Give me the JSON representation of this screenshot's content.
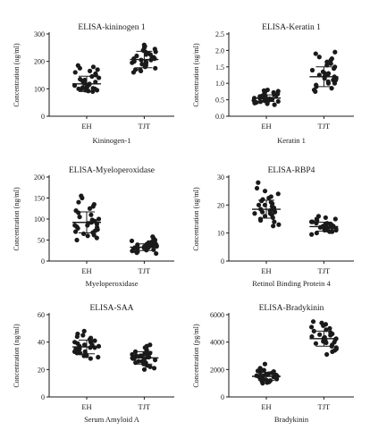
{
  "chart_data": [
    {
      "type": "scatter",
      "title": "ELISA-kininogen 1",
      "xlabel": "Kininogen-1",
      "ylabel": "Concentration (ug/ml)",
      "categories": [
        "EH",
        "TJT"
      ],
      "ylim": [
        0,
        300
      ],
      "yticks": [
        "0",
        "100",
        "200",
        "300"
      ],
      "summary": [
        {
          "group": "EH",
          "mean": 118,
          "sd": 28
        },
        {
          "group": "TJT",
          "mean": 207,
          "sd": 30
        }
      ],
      "series": [
        {
          "values": [
            90,
            92,
            95,
            98,
            100,
            102,
            105,
            108,
            110,
            112,
            115,
            118,
            120,
            125,
            128,
            132,
            135,
            140,
            145,
            150,
            155,
            160,
            165,
            170,
            175,
            180,
            185,
            95,
            100,
            105
          ]
        },
        {
          "values": [
            160,
            165,
            170,
            175,
            180,
            185,
            190,
            195,
            200,
            205,
            210,
            215,
            220,
            225,
            230,
            235,
            240,
            245,
            250,
            255,
            260,
            200,
            210,
            190,
            215,
            225,
            170,
            235,
            205,
            195
          ]
        }
      ]
    },
    {
      "type": "scatter",
      "title": "ELISA-Keratin 1",
      "xlabel": "Keratin 1",
      "ylabel": "Concentration (ug/ml)",
      "categories": [
        "EH",
        "TJT"
      ],
      "ylim": [
        0,
        2.5
      ],
      "yticks": [
        "0.0",
        "0.5",
        "1.0",
        "1.5",
        "2.0",
        "2.5"
      ],
      "summary": [
        {
          "group": "EH",
          "mean": 0.55,
          "sd": 0.1
        },
        {
          "group": "TJT",
          "mean": 1.2,
          "sd": 0.3
        }
      ],
      "series": [
        {
          "values": [
            0.35,
            0.38,
            0.4,
            0.42,
            0.44,
            0.45,
            0.47,
            0.48,
            0.5,
            0.5,
            0.52,
            0.53,
            0.55,
            0.56,
            0.58,
            0.6,
            0.6,
            0.62,
            0.63,
            0.65,
            0.67,
            0.68,
            0.7,
            0.72,
            0.74,
            0.76,
            0.78,
            0.8,
            0.45,
            0.55
          ]
        },
        {
          "values": [
            0.75,
            0.8,
            0.85,
            0.9,
            0.95,
            1.0,
            1.0,
            1.05,
            1.1,
            1.1,
            1.15,
            1.2,
            1.2,
            1.25,
            1.3,
            1.3,
            1.35,
            1.4,
            1.45,
            1.5,
            1.55,
            1.6,
            1.65,
            1.7,
            1.75,
            1.8,
            1.9,
            1.95,
            1.15,
            1.25
          ]
        }
      ]
    },
    {
      "type": "scatter",
      "title": "ELISA-Myeloperoxidase",
      "xlabel": "Myeloperoxidase",
      "ylabel": "Concentration (ng/ml)",
      "categories": [
        "EH",
        "TJT"
      ],
      "ylim": [
        0,
        200
      ],
      "yticks": [
        "0",
        "50",
        "100",
        "150",
        "200"
      ],
      "summary": [
        {
          "group": "EH",
          "mean": 92,
          "sd": 25
        },
        {
          "group": "TJT",
          "mean": 33,
          "sd": 8
        }
      ],
      "series": [
        {
          "values": [
            50,
            55,
            60,
            62,
            65,
            68,
            70,
            72,
            75,
            78,
            80,
            82,
            85,
            88,
            90,
            92,
            95,
            98,
            100,
            105,
            110,
            115,
            120,
            125,
            130,
            135,
            140,
            150,
            155,
            85
          ]
        },
        {
          "values": [
            18,
            20,
            22,
            24,
            25,
            26,
            27,
            28,
            29,
            30,
            30,
            31,
            32,
            33,
            34,
            35,
            35,
            36,
            37,
            38,
            39,
            40,
            42,
            44,
            46,
            48,
            50,
            55,
            58,
            32
          ]
        }
      ]
    },
    {
      "type": "scatter",
      "title": "ELISA-RBP4",
      "xlabel": "Retinol Binding Protein 4",
      "ylabel": "Concentration (ug/ml)",
      "categories": [
        "EH",
        "TJT"
      ],
      "ylim": [
        0,
        30
      ],
      "yticks": [
        "0",
        "10",
        "20",
        "30"
      ],
      "summary": [
        {
          "group": "EH",
          "mean": 18.5,
          "sd": 3.2
        },
        {
          "group": "TJT",
          "mean": 12.3,
          "sd": 1.6
        }
      ],
      "series": [
        {
          "values": [
            12.5,
            13,
            14,
            14.5,
            15,
            15.5,
            16,
            16.5,
            17,
            17.5,
            17.5,
            18,
            18,
            18.5,
            19,
            19,
            19.5,
            20,
            20,
            20.5,
            21,
            21.5,
            22,
            22.5,
            23,
            24,
            25,
            26,
            28,
            17
          ]
        },
        {
          "values": [
            9.5,
            10,
            10.5,
            10.5,
            11,
            11,
            11,
            11.5,
            11.5,
            12,
            12,
            12,
            12,
            12.5,
            12.5,
            12.5,
            13,
            13,
            13,
            13.5,
            13.5,
            14,
            14,
            14.5,
            15,
            15,
            15.5,
            16,
            11.8,
            12.2
          ]
        }
      ]
    },
    {
      "type": "scatter",
      "title": "ELISA-SAA",
      "xlabel": "Serum Amyloid A",
      "ylabel": "Concentration (ng/ml)",
      "categories": [
        "EH",
        "TJT"
      ],
      "ylim": [
        0,
        60
      ],
      "yticks": [
        "0",
        "20",
        "40",
        "60"
      ],
      "summary": [
        {
          "group": "EH",
          "mean": 36.5,
          "sd": 5
        },
        {
          "group": "TJT",
          "mean": 28.5,
          "sd": 4.5
        }
      ],
      "series": [
        {
          "values": [
            28,
            29,
            30,
            30,
            31,
            32,
            32,
            33,
            34,
            34,
            35,
            35,
            36,
            36,
            37,
            37,
            38,
            38,
            39,
            40,
            40,
            41,
            42,
            43,
            44,
            45,
            46,
            48,
            33,
            36
          ]
        },
        {
          "values": [
            20,
            21,
            22,
            23,
            24,
            25,
            25,
            26,
            26,
            27,
            27,
            28,
            28,
            29,
            29,
            30,
            30,
            30,
            31,
            31,
            32,
            32,
            33,
            34,
            35,
            36,
            37,
            38,
            28,
            29
          ]
        }
      ]
    },
    {
      "type": "scatter",
      "title": "ELISA-Bradykinin",
      "xlabel": "Bradykinin",
      "ylabel": "Concentration (pg/ml)",
      "categories": [
        "EH",
        "TJT"
      ],
      "ylim": [
        0,
        6000
      ],
      "yticks": [
        "0",
        "2000",
        "4000",
        "6000"
      ],
      "summary": [
        {
          "group": "EH",
          "mean": 1500,
          "sd": 300
        },
        {
          "group": "TJT",
          "mean": 4250,
          "sd": 550
        }
      ],
      "series": [
        {
          "values": [
            1000,
            1050,
            1100,
            1150,
            1200,
            1200,
            1250,
            1300,
            1300,
            1350,
            1400,
            1400,
            1450,
            1500,
            1500,
            1550,
            1600,
            1600,
            1650,
            1700,
            1750,
            1800,
            1850,
            1900,
            1950,
            2000,
            2100,
            2400,
            1450,
            1550
          ]
        },
        {
          "values": [
            3100,
            3300,
            3400,
            3500,
            3600,
            3700,
            3800,
            3900,
            3950,
            4000,
            4050,
            4100,
            4150,
            4200,
            4250,
            4300,
            4350,
            4400,
            4500,
            4550,
            4600,
            4700,
            4800,
            4900,
            5000,
            5100,
            5200,
            5300,
            5400,
            5500
          ]
        }
      ]
    }
  ]
}
